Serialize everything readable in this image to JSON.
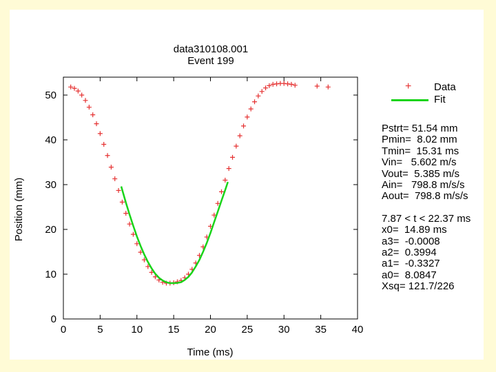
{
  "chart_data": {
    "type": "scatter",
    "title": "data310108.001",
    "subtitle": "Event 199",
    "xlabel": "Time (ms)",
    "ylabel": "Position (mm)",
    "xlim": [
      0,
      40
    ],
    "ylim": [
      0,
      54
    ],
    "xticks": [
      "0",
      "5",
      "10",
      "15",
      "20",
      "25",
      "30",
      "35",
      "40"
    ],
    "yticks": [
      "0",
      "10",
      "20",
      "30",
      "40",
      "50"
    ],
    "legend": {
      "placement": "top-right",
      "entries": [
        "Data",
        "Fit"
      ]
    },
    "series": [
      {
        "name": "Data",
        "marker": "plus",
        "color": "#e53030",
        "x": [
          1.0,
          1.5,
          2.0,
          2.5,
          3.0,
          3.5,
          4.0,
          4.5,
          5.0,
          5.5,
          6.0,
          6.5,
          7.0,
          7.5,
          8.0,
          8.5,
          9.0,
          9.5,
          10.0,
          10.5,
          11.0,
          11.5,
          12.0,
          12.5,
          13.0,
          13.5,
          14.0,
          14.5,
          15.0,
          15.5,
          16.0,
          16.5,
          17.0,
          17.5,
          18.0,
          18.5,
          19.0,
          19.5,
          20.0,
          20.5,
          21.0,
          21.5,
          22.0,
          22.5,
          23.0,
          23.5,
          24.0,
          24.5,
          25.0,
          25.5,
          26.0,
          26.5,
          27.0,
          27.5,
          28.0,
          28.5,
          29.0,
          29.5,
          30.0,
          30.5,
          31.0,
          31.5,
          34.5,
          36.0
        ],
        "y": [
          51.8,
          51.5,
          50.9,
          50.0,
          48.8,
          47.3,
          45.6,
          43.6,
          41.4,
          39.0,
          36.5,
          33.9,
          31.3,
          28.7,
          26.1,
          23.6,
          21.2,
          18.9,
          16.8,
          14.9,
          13.2,
          11.7,
          10.4,
          9.4,
          8.7,
          8.2,
          8.0,
          8.0,
          8.1,
          8.3,
          8.6,
          9.2,
          10.0,
          11.1,
          12.5,
          14.2,
          16.1,
          18.3,
          20.7,
          23.2,
          25.8,
          28.4,
          31.0,
          33.6,
          36.1,
          38.6,
          40.9,
          43.1,
          45.1,
          46.9,
          48.5,
          49.8,
          50.8,
          51.6,
          52.1,
          52.4,
          52.5,
          52.6,
          52.6,
          52.5,
          52.4,
          52.2,
          52.0,
          51.8
        ]
      },
      {
        "name": "Fit",
        "line": true,
        "color": "#19d419",
        "x": [
          7.87,
          8.5,
          9.0,
          9.5,
          10.0,
          10.5,
          11.0,
          11.5,
          12.0,
          12.5,
          13.0,
          13.5,
          14.0,
          14.5,
          15.0,
          15.31,
          15.5,
          16.0,
          16.5,
          17.0,
          17.5,
          18.0,
          18.5,
          19.0,
          19.5,
          20.0,
          20.5,
          21.0,
          21.5,
          22.0,
          22.37
        ],
        "y": [
          29.6,
          26.0,
          23.3,
          20.8,
          18.4,
          16.3,
          14.4,
          12.7,
          11.3,
          10.1,
          9.2,
          8.6,
          8.2,
          8.0,
          8.0,
          8.02,
          8.05,
          8.2,
          8.7,
          9.4,
          10.4,
          11.7,
          13.2,
          15.0,
          17.0,
          19.2,
          21.6,
          24.0,
          26.4,
          28.8,
          30.6
        ]
      }
    ]
  },
  "legend": {
    "data_label": "Data",
    "fit_label": "Fit"
  },
  "stats": {
    "pstrt": "Pstrt= 51.54 mm",
    "pmin": "Pmin=  8.02 mm",
    "tmin": "Tmin=  15.31 ms",
    "vin": "Vin=   5.602 m/s",
    "vout": "Vout=  5.385 m/s",
    "ain": "Ain=   798.8 m/s/s",
    "aout": "Aout=  798.8 m/s/s"
  },
  "fit_params": {
    "range": "7.87 < t < 22.37 ms",
    "x0": "x0=  14.89 ms",
    "a3": "a3=  -0.0008",
    "a2": "a2=  0.3994",
    "a1": "a1=  -0.3327",
    "a0": "a0=  8.0847",
    "xsq": "Xsq= 121.7/226"
  },
  "colors": {
    "background": "#fffbd6",
    "data": "#e53030",
    "fit": "#19d419"
  }
}
